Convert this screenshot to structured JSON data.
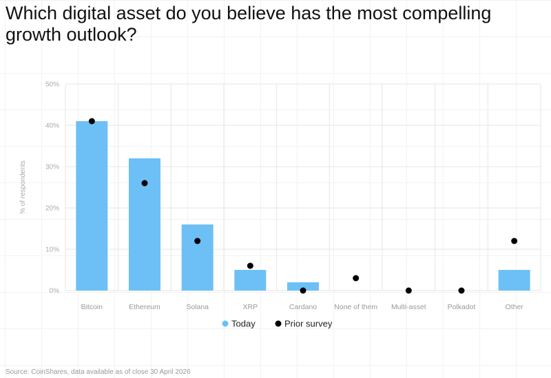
{
  "title": "Which digital asset do you believe has the most compelling growth outlook?",
  "source": "Source: CoinShares, data available as of close 30 April 2026",
  "chart_data": {
    "type": "bar",
    "categories": [
      "Bitcoin",
      "Ethereum",
      "Solana",
      "XRP",
      "Cardano",
      "None of them",
      "Multi-asset",
      "Polkadot",
      "Other"
    ],
    "series": [
      {
        "name": "Today",
        "type": "bar",
        "color": "#6cc0f5",
        "values": [
          41,
          32,
          16,
          5,
          2,
          0,
          0,
          0,
          5
        ]
      },
      {
        "name": "Prior survey",
        "type": "scatter",
        "color": "#000000",
        "values": [
          41,
          26,
          12,
          6,
          0,
          3,
          0,
          0,
          12
        ]
      }
    ],
    "ylabel": "% of respondents",
    "ylim": [
      0,
      50
    ],
    "yticks": [
      "0%",
      "10%",
      "20%",
      "30%",
      "40%",
      "50%"
    ],
    "grid": true,
    "legend_position": "bottom-center"
  }
}
